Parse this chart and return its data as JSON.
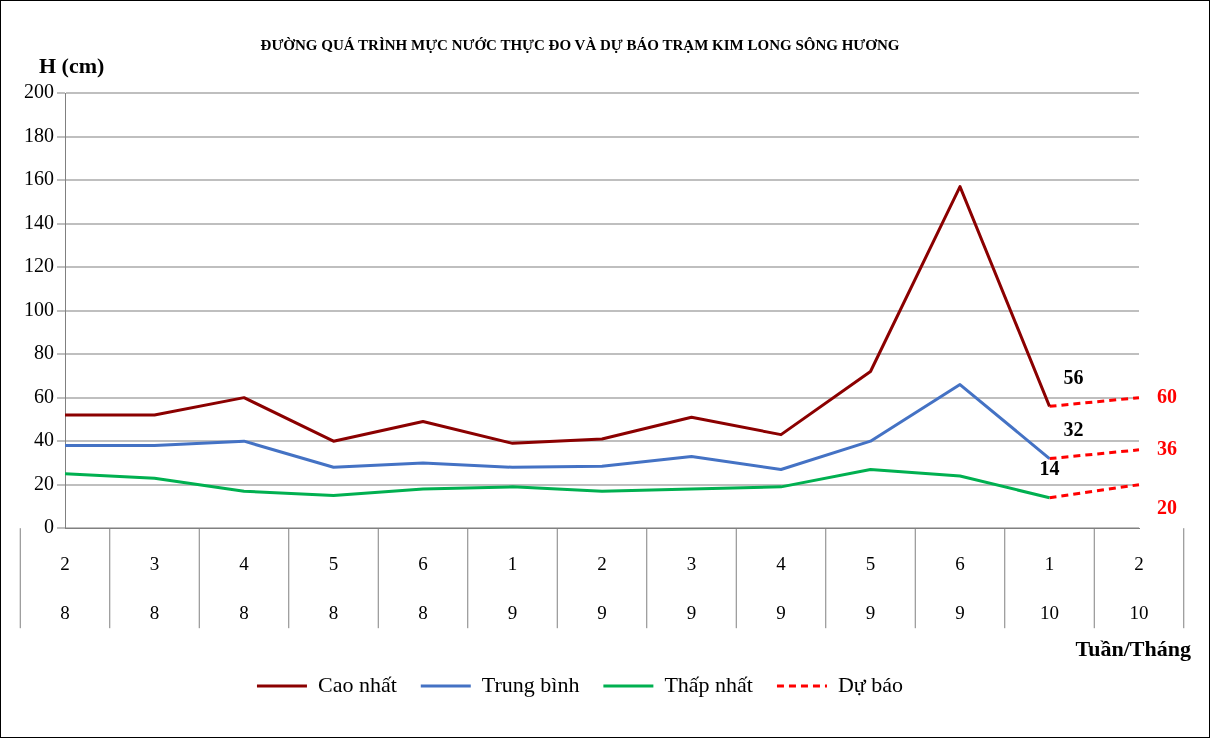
{
  "chart_data": {
    "type": "line",
    "title": "ĐƯỜNG QUÁ TRÌNH MỰC NƯỚC THỰC ĐO VÀ DỰ BÁO TRẠM KIM LONG SÔNG HƯƠNG",
    "xlabel": "Tuần/Tháng",
    "ylabel": "H (cm)",
    "categories": [
      "2\n8",
      "3\n8",
      "4\n8",
      "5\n8",
      "6\n8",
      "1\n9",
      "2\n9",
      "3\n9",
      "4\n9",
      "5\n9",
      "6\n9",
      "1\n10",
      "2\n10"
    ],
    "series": [
      {
        "name": "Cao nhất",
        "color": "#8b0000",
        "values": [
          52,
          52,
          60,
          40,
          49,
          39,
          41,
          51,
          43,
          72,
          157,
          56,
          null
        ],
        "value_labels": [
          null,
          null,
          null,
          null,
          null,
          null,
          null,
          null,
          null,
          null,
          null,
          "56",
          null
        ]
      },
      {
        "name": "Trung bình",
        "color": "#4472c4",
        "values": [
          38,
          38,
          40,
          28,
          30,
          28,
          28.5,
          33,
          27,
          40,
          66,
          32,
          null
        ],
        "value_labels": [
          null,
          null,
          null,
          null,
          null,
          null,
          null,
          null,
          null,
          null,
          null,
          "32",
          null
        ]
      },
      {
        "name": "Thấp nhất",
        "color": "#00b050",
        "values": [
          25,
          23,
          17,
          15,
          18,
          19,
          17,
          18,
          19,
          27,
          24,
          14,
          null
        ],
        "value_labels": [
          null,
          null,
          null,
          null,
          null,
          null,
          null,
          null,
          null,
          null,
          null,
          "14",
          null
        ]
      },
      {
        "name": "Dự báo",
        "color": "#ff0000",
        "line_style": "dashed",
        "values": [
          null,
          null,
          null,
          null,
          null,
          null,
          null,
          null,
          null,
          null,
          null,
          56,
          60
        ],
        "value_labels": [
          null,
          null,
          null,
          null,
          null,
          null,
          null,
          null,
          null,
          null,
          null,
          null,
          "60"
        ]
      },
      {
        "color": "#ff0000",
        "line_style": "dashed",
        "values": [
          null,
          null,
          null,
          null,
          null,
          null,
          null,
          null,
          null,
          null,
          null,
          32,
          36
        ],
        "value_labels": [
          null,
          null,
          null,
          null,
          null,
          null,
          null,
          null,
          null,
          null,
          null,
          null,
          "36"
        ]
      },
      {
        "color": "#ff0000",
        "line_style": "dashed",
        "values": [
          null,
          null,
          null,
          null,
          null,
          null,
          null,
          null,
          null,
          null,
          null,
          14,
          20
        ],
        "value_labels": [
          null,
          null,
          null,
          null,
          null,
          null,
          null,
          null,
          null,
          null,
          null,
          null,
          "20"
        ]
      }
    ],
    "ylim": [
      0,
      200
    ],
    "yticks": [
      0,
      20,
      40,
      60,
      80,
      100,
      120,
      140,
      160,
      180,
      200
    ],
    "grid": "y",
    "legend": "bottom",
    "marker": "none"
  }
}
